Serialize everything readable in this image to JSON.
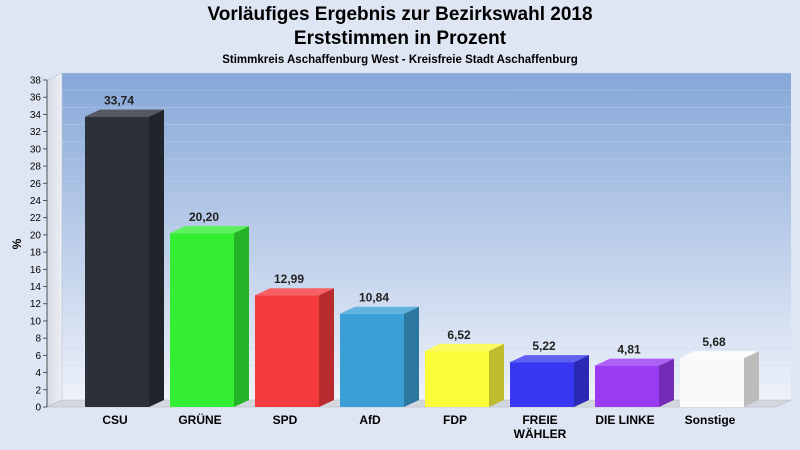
{
  "header": {
    "title": "Vorläufiges Ergebnis zur Bezirkswahl 2018",
    "subtitle": "Erststimmen in Prozent",
    "caption": "Stimmkreis Aschaffenburg West - Kreisfreie Stadt Aschaffenburg"
  },
  "chart_data": {
    "type": "bar",
    "title": "Vorläufiges Ergebnis zur Bezirkswahl 2018",
    "subtitle": "Erststimmen in Prozent",
    "ylabel": "%",
    "ylim": [
      0,
      38
    ],
    "ytick_step": 2,
    "grid": true,
    "categories": [
      [
        "CSU"
      ],
      [
        "GRÜNE"
      ],
      [
        "SPD"
      ],
      [
        "AfD"
      ],
      [
        "FDP"
      ],
      [
        "FREIE",
        "WÄHLER"
      ],
      [
        "DIE LINKE"
      ],
      [
        "Sonstige"
      ]
    ],
    "values": [
      33.74,
      20.2,
      12.99,
      10.84,
      6.52,
      5.22,
      4.81,
      5.68
    ],
    "value_labels": [
      "33,74",
      "20,20",
      "12,99",
      "10,84",
      "6,52",
      "5,22",
      "4,81",
      "5,68"
    ],
    "colors": [
      "#2c3039",
      "#34ee34",
      "#f53a3d",
      "#3a9fd4",
      "#fbfb3a",
      "#3838f0",
      "#9a3af2",
      "#fafafa"
    ]
  }
}
